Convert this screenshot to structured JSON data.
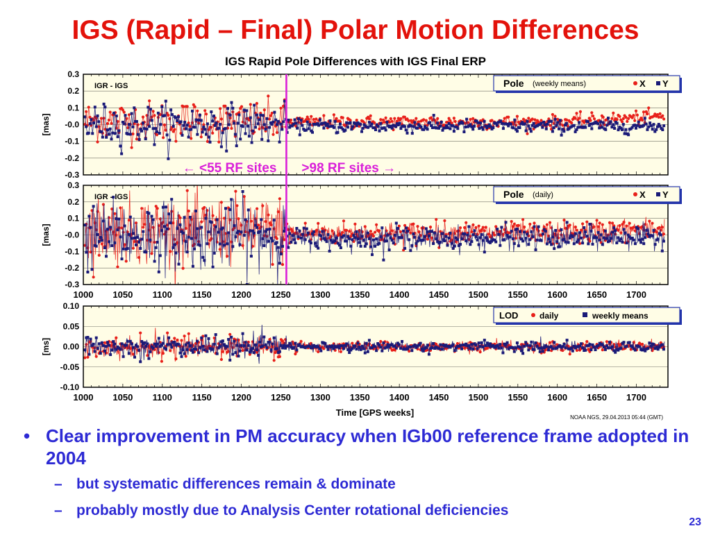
{
  "slide": {
    "title": "IGS (Rapid – Final) Polar Motion Differences",
    "page_number": "23"
  },
  "bullets": {
    "main": "Clear improvement in PM accuracy when IGb00 reference frame adopted in 2004",
    "subs": [
      "but systematic differences remain & dominate",
      "probably mostly due to Analysis Center rotational deficiencies"
    ]
  },
  "colors": {
    "title": "#e3120b",
    "bullet_text": "#2d2ad4",
    "series_x": "#e8201a",
    "series_y": "#1a1a78",
    "plot_background": "#fffde6",
    "annotation": "#d91fd9",
    "legend_border": "#2233aa"
  },
  "chart_data": {
    "type": "scatter",
    "title": "IGS Rapid Pole Differences with IGS Final ERP",
    "xlabel": "Time [GPS weeks]",
    "credit": "NOAA NGS, 29.04.2013 05:44 (GMT)",
    "xlim": [
      1000,
      1740
    ],
    "xticks": [
      1000,
      1050,
      1100,
      1150,
      1200,
      1250,
      1300,
      1350,
      1400,
      1450,
      1500,
      1550,
      1600,
      1650,
      1700
    ],
    "reference_line_x": 1257,
    "annotations": [
      {
        "text_left": "<55 RF sites",
        "text_right": ">98  RF sites"
      }
    ],
    "panels": [
      {
        "id": "weekly",
        "label": "IGR - IGS",
        "ylabel": "[mas]",
        "ylim": [
          -0.3,
          0.3
        ],
        "yticks": [
          "0.3",
          "0.2",
          "0.1",
          "-0.0",
          "-0.1",
          "-0.2",
          "-0.3"
        ],
        "legend": {
          "name": "Pole",
          "qualifier": "(weekly means)",
          "series": [
            "X",
            "Y"
          ]
        },
        "sigma_before": 0.06,
        "sigma_after": 0.02,
        "series": [
          {
            "name": "X",
            "color": "#e8201a",
            "bias_before": 0.02,
            "bias_after": 0.015,
            "end_bias": 0.05
          },
          {
            "name": "Y",
            "color": "#1a1a78",
            "bias_before": 0.0,
            "bias_after": -0.01,
            "end_bias": -0.01
          }
        ]
      },
      {
        "id": "daily",
        "label": "IGR - IGS",
        "ylabel": "[mas]",
        "ylim": [
          -0.3,
          0.3
        ],
        "yticks": [
          "0.3",
          "0.2",
          "0.1",
          "-0.0",
          "-0.1",
          "-0.2",
          "-0.3"
        ],
        "legend": {
          "name": "Pole",
          "qualifier": "(daily)",
          "series": [
            "X",
            "Y"
          ]
        },
        "sigma_before": 0.1,
        "sigma_after": 0.035,
        "series": [
          {
            "name": "X",
            "color": "#e8201a",
            "bias_before": 0.03,
            "bias_after": 0.01,
            "end_bias": 0.04
          },
          {
            "name": "Y",
            "color": "#1a1a78",
            "bias_before": 0.0,
            "bias_after": -0.02,
            "end_bias": -0.01
          }
        ]
      },
      {
        "id": "lod",
        "label": "",
        "ylabel": "[ms]",
        "ylim": [
          -0.1,
          0.1
        ],
        "yticks": [
          "0.10",
          "0.05",
          "0.00",
          "-0.05",
          "-0.10"
        ],
        "legend": {
          "name": "LOD",
          "qualifier": "",
          "series": [
            "daily",
            "weekly means"
          ]
        },
        "sigma_before": 0.012,
        "sigma_after": 0.006,
        "series": [
          {
            "name": "daily",
            "color": "#e8201a",
            "bias_before": 0.0,
            "bias_after": 0.0,
            "end_bias": 0.0
          },
          {
            "name": "weekly means",
            "color": "#1a1a78",
            "bias_before": 0.0,
            "bias_after": 0.0,
            "end_bias": 0.0
          }
        ]
      }
    ]
  }
}
